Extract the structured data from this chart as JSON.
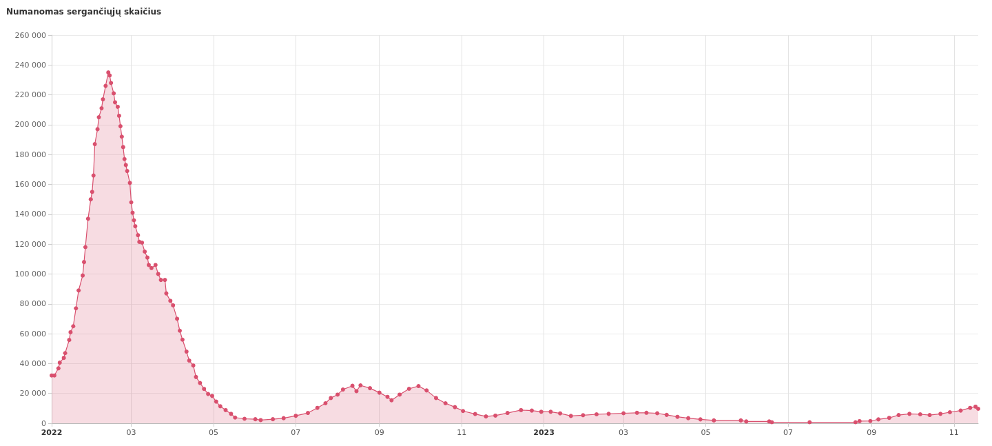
{
  "chart_data": {
    "type": "area",
    "title": "Numanomas sergančiųjų skaičius",
    "x": [
      "2022-01-01",
      "2022-01-03",
      "2022-01-06",
      "2022-01-07",
      "2022-01-10",
      "2022-01-11",
      "2022-01-14",
      "2022-01-15",
      "2022-01-17",
      "2022-01-19",
      "2022-01-21",
      "2022-01-24",
      "2022-01-25",
      "2022-01-26",
      "2022-01-28",
      "2022-01-30",
      "2022-01-31",
      "2022-02-01",
      "2022-02-02",
      "2022-02-04",
      "2022-02-05",
      "2022-02-07",
      "2022-02-08",
      "2022-02-10",
      "2022-02-12",
      "2022-02-13",
      "2022-02-14",
      "2022-02-16",
      "2022-02-17",
      "2022-02-19",
      "2022-02-20",
      "2022-02-21",
      "2022-02-22",
      "2022-02-23",
      "2022-02-24",
      "2022-02-25",
      "2022-02-26",
      "2022-02-28",
      "2022-03-01",
      "2022-03-02",
      "2022-03-03",
      "2022-03-04",
      "2022-03-06",
      "2022-03-07",
      "2022-03-09",
      "2022-03-11",
      "2022-03-13",
      "2022-03-14",
      "2022-03-16",
      "2022-03-19",
      "2022-03-21",
      "2022-03-23",
      "2022-03-26",
      "2022-03-27",
      "2022-03-30",
      "2022-04-01",
      "2022-04-04",
      "2022-04-06",
      "2022-04-08",
      "2022-04-11",
      "2022-04-13",
      "2022-04-16",
      "2022-04-18",
      "2022-04-21",
      "2022-04-24",
      "2022-04-27",
      "2022-04-30",
      "2022-05-03",
      "2022-05-06",
      "2022-05-10",
      "2022-05-14",
      "2022-05-17",
      "2022-05-24",
      "2022-06-01",
      "2022-06-05",
      "2022-06-14",
      "2022-06-22",
      "2022-07-01",
      "2022-07-10",
      "2022-07-17",
      "2022-07-23",
      "2022-07-27",
      "2022-08-01",
      "2022-08-05",
      "2022-08-12",
      "2022-08-15",
      "2022-08-18",
      "2022-08-25",
      "2022-09-01",
      "2022-09-07",
      "2022-09-10",
      "2022-09-16",
      "2022-09-23",
      "2022-09-30",
      "2022-10-06",
      "2022-10-13",
      "2022-10-20",
      "2022-10-27",
      "2022-11-02",
      "2022-11-11",
      "2022-11-19",
      "2022-11-26",
      "2022-12-05",
      "2022-12-15",
      "2022-12-23",
      "2022-12-30",
      "2023-01-06",
      "2023-01-13",
      "2023-01-21",
      "2023-01-30",
      "2023-02-09",
      "2023-02-18",
      "2023-03-01",
      "2023-03-11",
      "2023-03-18",
      "2023-03-26",
      "2023-04-02",
      "2023-04-10",
      "2023-04-18",
      "2023-04-27",
      "2023-05-07",
      "2023-05-27",
      "2023-05-31",
      "2023-06-17",
      "2023-06-19",
      "2023-07-17",
      "2023-08-20",
      "2023-08-23",
      "2023-08-31",
      "2023-09-06",
      "2023-09-14",
      "2023-09-21",
      "2023-09-29",
      "2023-10-07",
      "2023-10-14",
      "2023-10-22",
      "2023-10-29",
      "2023-11-06",
      "2023-11-13",
      "2023-11-17",
      "2023-11-19"
    ],
    "series": [
      {
        "color": "#d9506e",
        "values": [
          32000,
          32000,
          36800,
          40600,
          43800,
          47000,
          55800,
          61000,
          65000,
          77000,
          89000,
          99000,
          108000,
          118000,
          137000,
          150000,
          155000,
          166000,
          187000,
          197000,
          205000,
          211000,
          217000,
          226000,
          235000,
          233000,
          228000,
          221000,
          215000,
          212000,
          206000,
          199000,
          192000,
          185000,
          177000,
          173000,
          169000,
          161000,
          148000,
          141000,
          136000,
          132000,
          126000,
          121500,
          121000,
          115000,
          111000,
          106000,
          104000,
          106000,
          100000,
          96000,
          96000,
          87000,
          82000,
          79000,
          70000,
          62000,
          56000,
          48000,
          42000,
          38700,
          31000,
          27000,
          23000,
          19600,
          18300,
          14500,
          11400,
          8800,
          6300,
          3800,
          3000,
          2700,
          2100,
          2700,
          3400,
          5000,
          6900,
          10300,
          13400,
          16900,
          19200,
          22600,
          25100,
          21500,
          25400,
          23500,
          20500,
          17700,
          15400,
          19200,
          23100,
          24900,
          22000,
          16900,
          13400,
          10800,
          8200,
          6200,
          4600,
          5100,
          6900,
          8800,
          8500,
          7700,
          7700,
          6600,
          4900,
          5400,
          6000,
          6300,
          6700,
          7000,
          7000,
          6700,
          5600,
          4300,
          3400,
          2600,
          1900,
          1900,
          1200,
          1200,
          700,
          700,
          700,
          1400,
          1500,
          2600,
          3600,
          5500,
          6300,
          6000,
          5500,
          6300,
          7400,
          8500,
          10300,
          11100,
          9700
        ]
      }
    ],
    "xlim": [
      "2022-01-01",
      "2023-11-19"
    ],
    "xticks": [
      {
        "value": "2022-01-01",
        "label": "2022"
      },
      {
        "value": "2022-03-01",
        "label": "03"
      },
      {
        "value": "2022-05-01",
        "label": "05"
      },
      {
        "value": "2022-07-01",
        "label": "07"
      },
      {
        "value": "2022-09-01",
        "label": "09"
      },
      {
        "value": "2022-11-01",
        "label": "11"
      },
      {
        "value": "2023-01-01",
        "label": "2023"
      },
      {
        "value": "2023-03-01",
        "label": "03"
      },
      {
        "value": "2023-05-01",
        "label": "05"
      },
      {
        "value": "2023-07-01",
        "label": "07"
      },
      {
        "value": "2023-09-01",
        "label": "09"
      },
      {
        "value": "2023-11-01",
        "label": "11"
      }
    ],
    "ylim": [
      0,
      260000
    ],
    "yticks": [
      0,
      {
        "value": 20000,
        "label": "20 000"
      },
      {
        "value": 40000,
        "label": "40 000"
      },
      {
        "value": 60000,
        "label": "60 000"
      },
      {
        "value": 80000,
        "label": "80 000"
      },
      {
        "value": 100000,
        "label": "100 000"
      },
      {
        "value": 120000,
        "label": "120 000"
      },
      {
        "value": 140000,
        "label": "140 000"
      },
      {
        "value": 160000,
        "label": "160 000"
      },
      {
        "value": 180000,
        "label": "180 000"
      },
      {
        "value": 200000,
        "label": "200 000"
      },
      {
        "value": 220000,
        "label": "220 000"
      },
      {
        "value": 240000,
        "label": "240 000"
      },
      {
        "value": 260000,
        "label": "260 000"
      }
    ],
    "grid": true,
    "marker": "circle",
    "line_style": "solid"
  }
}
